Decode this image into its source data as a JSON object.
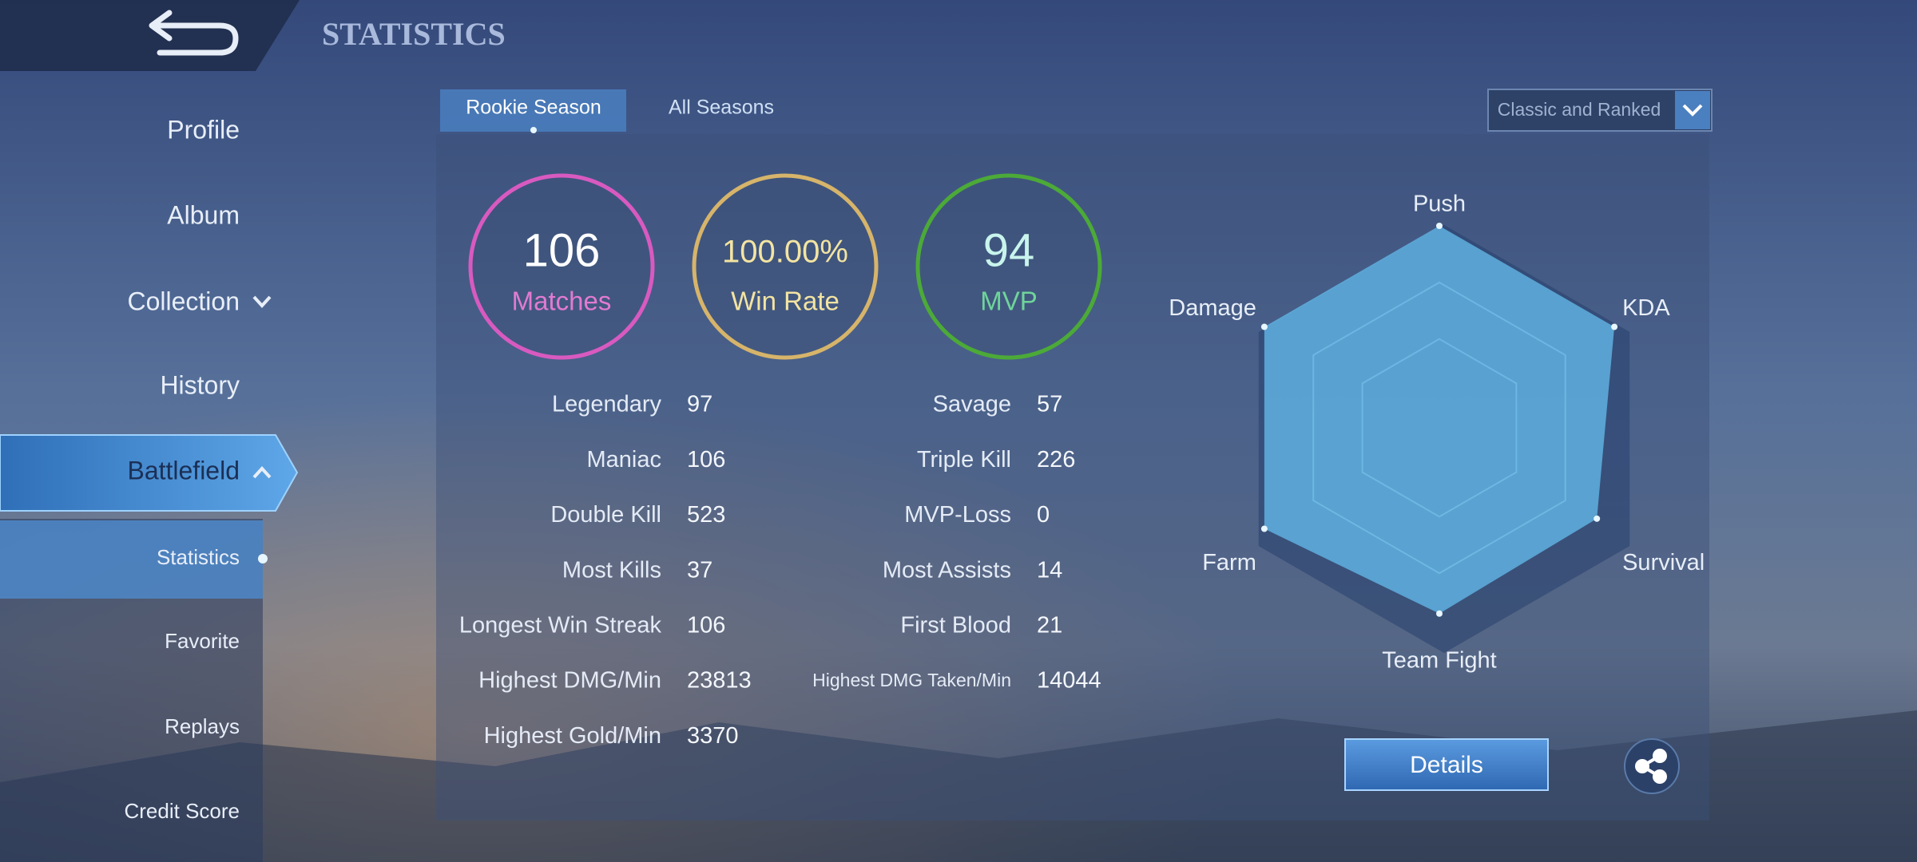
{
  "header": {
    "title": "STATISTICS"
  },
  "sidebar": {
    "items": [
      "Profile",
      "Album",
      "Collection",
      "History",
      "Battlefield"
    ],
    "subitems": [
      "Statistics",
      "Favorite",
      "Replays",
      "Credit Score"
    ]
  },
  "tabs": [
    "Rookie Season",
    "All Seasons"
  ],
  "mode_select": "Classic and Ranked",
  "summary": [
    {
      "value": 106,
      "label": "Matches"
    },
    {
      "value": "100.00%",
      "label": "Win Rate"
    },
    {
      "value": 94,
      "label": "MVP"
    }
  ],
  "stats": {
    "left": [
      {
        "label": "Legendary",
        "value": 97
      },
      {
        "label": "Maniac",
        "value": 106
      },
      {
        "label": "Double Kill",
        "value": 523
      },
      {
        "label": "Most Kills",
        "value": 37
      },
      {
        "label": "Longest Win Streak",
        "value": 106
      },
      {
        "label": "Highest DMG/Min",
        "value": 23813
      },
      {
        "label": "Highest Gold/Min",
        "value": 3370
      }
    ],
    "right": [
      {
        "label": "Savage",
        "value": 57
      },
      {
        "label": "Triple Kill",
        "value": 226
      },
      {
        "label": "MVP-Loss",
        "value": 0
      },
      {
        "label": "Most Assists",
        "value": 14
      },
      {
        "label": "First Blood",
        "value": 21
      },
      {
        "label": "Highest DMG Taken/Min",
        "value": 14044
      }
    ]
  },
  "radar": {
    "type": "radar",
    "axes": [
      "Push",
      "KDA",
      "Survival",
      "Team Fight",
      "Farm",
      "Damage"
    ],
    "values": [
      100,
      100,
      90,
      92,
      100,
      100
    ],
    "rlim": [
      0,
      100
    ]
  },
  "details_button": "Details"
}
